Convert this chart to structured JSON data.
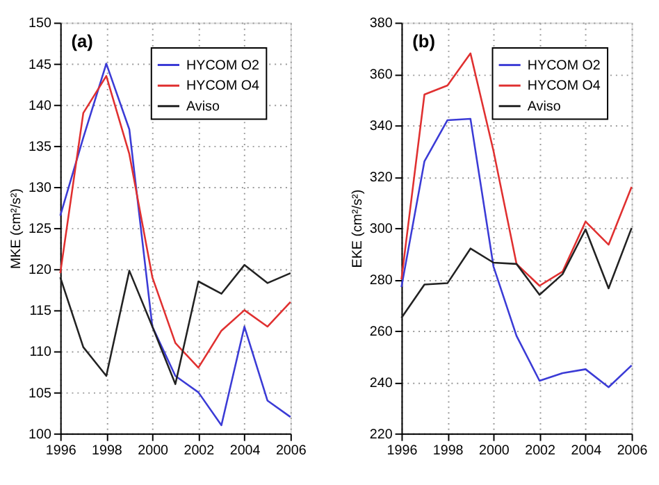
{
  "chart_data": [
    {
      "type": "line",
      "ylabel": "MKE (cm²/s²)",
      "annotations": [
        "(a)"
      ],
      "x": [
        1996,
        1997,
        1998,
        1999,
        2000,
        2001,
        2002,
        2003,
        2004,
        2005,
        2006
      ],
      "xlim": [
        1996,
        2006
      ],
      "xticks": [
        1996,
        1998,
        2000,
        2002,
        2004,
        2006
      ],
      "ylim": [
        100,
        150
      ],
      "yticks": [
        100,
        105,
        110,
        115,
        120,
        125,
        130,
        135,
        140,
        145,
        150
      ],
      "grid": true,
      "legend": "top right",
      "line_style": "solid",
      "marker": "none",
      "series": [
        {
          "name": "HYCOM O2",
          "color": "#3b3bd6",
          "values": [
            126.5,
            136,
            145,
            137,
            113,
            107,
            105,
            101,
            113,
            104,
            102
          ]
        },
        {
          "name": "HYCOM O4",
          "color": "#e03030",
          "values": [
            119.5,
            139,
            143.5,
            134,
            119,
            111,
            108,
            112.5,
            115,
            113,
            116
          ]
        },
        {
          "name": "Aviso",
          "color": "#222222",
          "values": [
            119,
            110.5,
            107,
            119.8,
            113,
            106,
            118.5,
            117,
            120.5,
            118.3,
            119.5
          ]
        }
      ]
    },
    {
      "type": "line",
      "ylabel": "EKE (cm²/s²)",
      "annotations": [
        "(b)"
      ],
      "x": [
        1996,
        1997,
        1998,
        1999,
        2000,
        2001,
        2002,
        2003,
        2004,
        2005,
        2006
      ],
      "xlim": [
        1996,
        2006
      ],
      "xticks": [
        1996,
        1998,
        2000,
        2002,
        2004,
        2006
      ],
      "ylim": [
        220,
        380
      ],
      "yticks": [
        220,
        240,
        260,
        280,
        300,
        320,
        340,
        360,
        380
      ],
      "grid": true,
      "legend": "top right",
      "line_style": "solid",
      "marker": "none",
      "series": [
        {
          "name": "HYCOM O2",
          "color": "#3b3bd6",
          "values": [
            277,
            326,
            342,
            342.5,
            285,
            258,
            240.5,
            243.5,
            245,
            238,
            246.5
          ]
        },
        {
          "name": "HYCOM O4",
          "color": "#e03030",
          "values": [
            280,
            352,
            355.5,
            368,
            330,
            286,
            277.5,
            283,
            302.5,
            293.5,
            316
          ]
        },
        {
          "name": "Aviso",
          "color": "#222222",
          "values": [
            265,
            278,
            278.5,
            292,
            286.5,
            286,
            274,
            282,
            299.5,
            276.5,
            300
          ]
        }
      ]
    }
  ]
}
